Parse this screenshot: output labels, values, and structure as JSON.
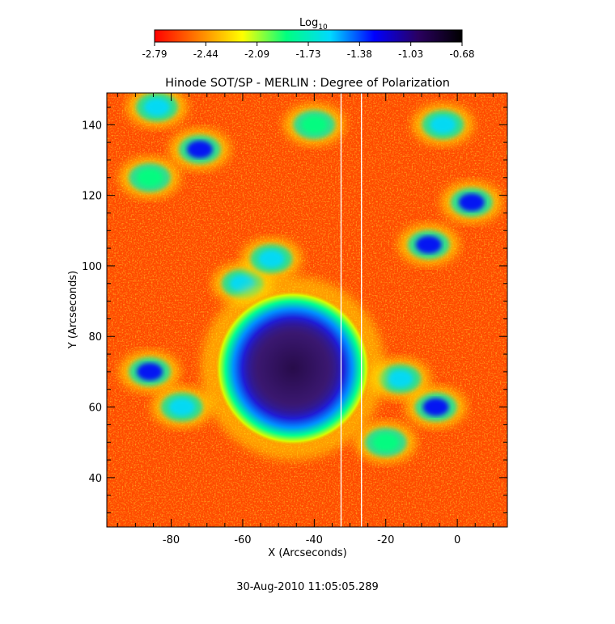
{
  "chart_data": {
    "type": "heatmap",
    "title": "Hinode SOT/SP - MERLIN : Degree of Polarization",
    "xlabel": "X (Arcseconds)",
    "ylabel": "Y (Arcseconds)",
    "xlim": [
      -98,
      14
    ],
    "ylim": [
      26,
      149
    ],
    "x_ticks": [
      -80,
      -60,
      -40,
      -20,
      0
    ],
    "y_ticks": [
      40,
      60,
      80,
      100,
      120,
      140
    ],
    "colorbar": {
      "label": "Log",
      "label_subscript": "10",
      "range": [
        -2.79,
        -0.68
      ],
      "ticks": [
        "-2.79",
        "-2.44",
        "-2.09",
        "-1.73",
        "-1.38",
        "-1.03",
        "-0.68"
      ],
      "colormap": [
        "#ff0000",
        "#ff7f00",
        "#ffff00",
        "#00ff7f",
        "#00d9ff",
        "#0000ff",
        "#2a0060",
        "#000000"
      ]
    },
    "features": {
      "sunspot": {
        "center": [
          -46,
          71
        ],
        "umbra_radius": 13,
        "penumbra_radius": 19,
        "value": -0.85
      },
      "background_value": -2.6,
      "vertical_lines_x": [
        -32.5,
        -26.8
      ],
      "plage_patches": [
        {
          "center": [
            -86,
            70
          ],
          "value": -1.2
        },
        {
          "center": [
            -77,
            60
          ],
          "value": -1.5
        },
        {
          "center": [
            -72,
            133
          ],
          "value": -1.3
        },
        {
          "center": [
            -60,
            95
          ],
          "value": -1.6
        },
        {
          "center": [
            -52,
            102
          ],
          "value": -1.5
        },
        {
          "center": [
            -8,
            106
          ],
          "value": -1.3
        },
        {
          "center": [
            4,
            118
          ],
          "value": -1.2
        },
        {
          "center": [
            -6,
            60
          ],
          "value": -1.4
        },
        {
          "center": [
            -16,
            68
          ],
          "value": -1.6
        },
        {
          "center": [
            -84,
            145
          ],
          "value": -1.6
        },
        {
          "center": [
            -4,
            140
          ],
          "value": -1.7
        },
        {
          "center": [
            -86,
            125
          ],
          "value": -1.9
        },
        {
          "center": [
            -40,
            140
          ],
          "value": -1.9
        },
        {
          "center": [
            -20,
            50
          ],
          "value": -1.9
        }
      ]
    }
  },
  "footer": {
    "timestamp": "30-Aug-2010 11:05:05.289"
  }
}
